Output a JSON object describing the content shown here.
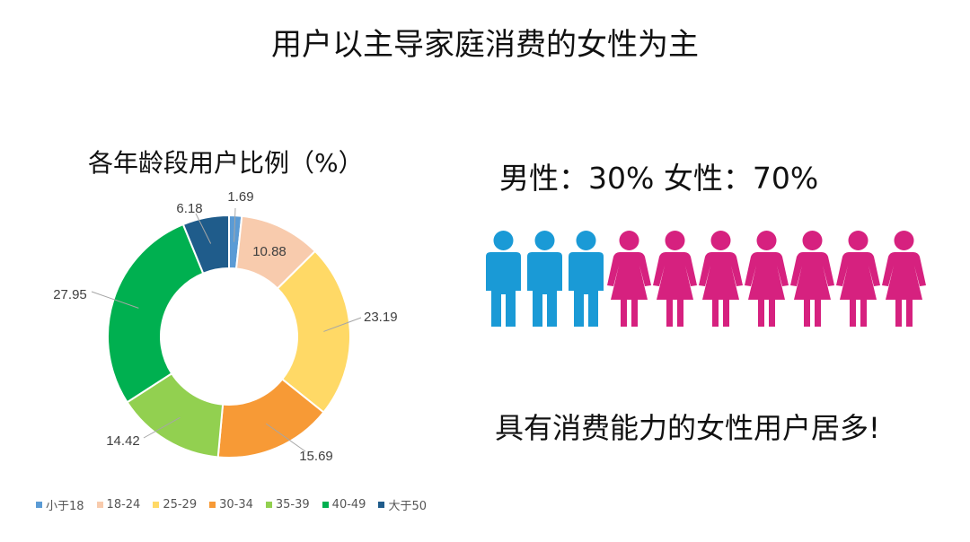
{
  "title": "用户以主导家庭消费的女性为主",
  "chart_data": {
    "type": "pie",
    "title": "各年龄段用户比例（%）",
    "categories": [
      "小于18",
      "18-24",
      "25-29",
      "30-34",
      "35-39",
      "40-49",
      "大于50"
    ],
    "values": [
      1.69,
      10.88,
      23.19,
      15.69,
      14.42,
      27.95,
      6.18
    ],
    "labels": [
      "1.69",
      "10.88",
      "23.19",
      "15.69",
      "14.42",
      "27.95",
      "6.18"
    ],
    "colors": [
      "#5b9bd5",
      "#f8cbad",
      "#ffd966",
      "#f79a36",
      "#92d050",
      "#00b050",
      "#1f5c8b"
    ],
    "legend_position": "bottom",
    "donut": true
  },
  "gender": {
    "text": "男性：30%  女性：70%",
    "male_count": 3,
    "female_count": 7,
    "male_color": "#1a9ad6",
    "female_color": "#d6217f",
    "male_icon": "male-person-icon",
    "female_icon": "female-person-icon"
  },
  "summary": "具有消费能力的女性用户居多!"
}
